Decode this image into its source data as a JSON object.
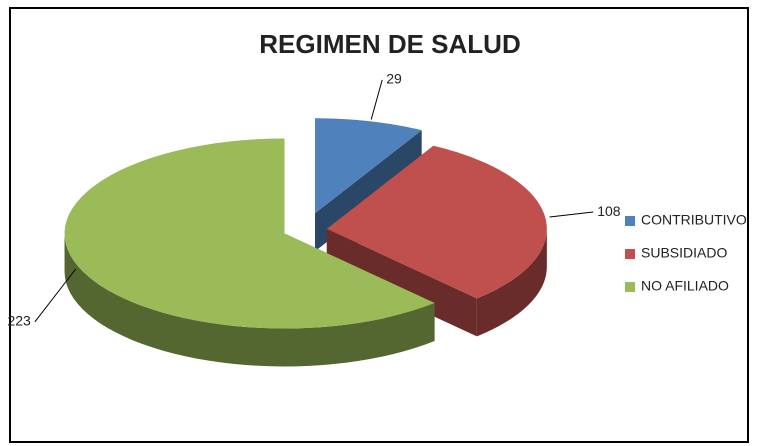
{
  "chart_data": {
    "type": "pie",
    "title": "REGIMEN DE SALUD",
    "categories": [
      "CONTRIBUTIVO",
      "SUBSIDIADO",
      "NO AFILIADO"
    ],
    "values": [
      29,
      108,
      223
    ],
    "colors": [
      "#4f81bd",
      "#c0504d",
      "#9bbb59"
    ],
    "legend": "right"
  }
}
